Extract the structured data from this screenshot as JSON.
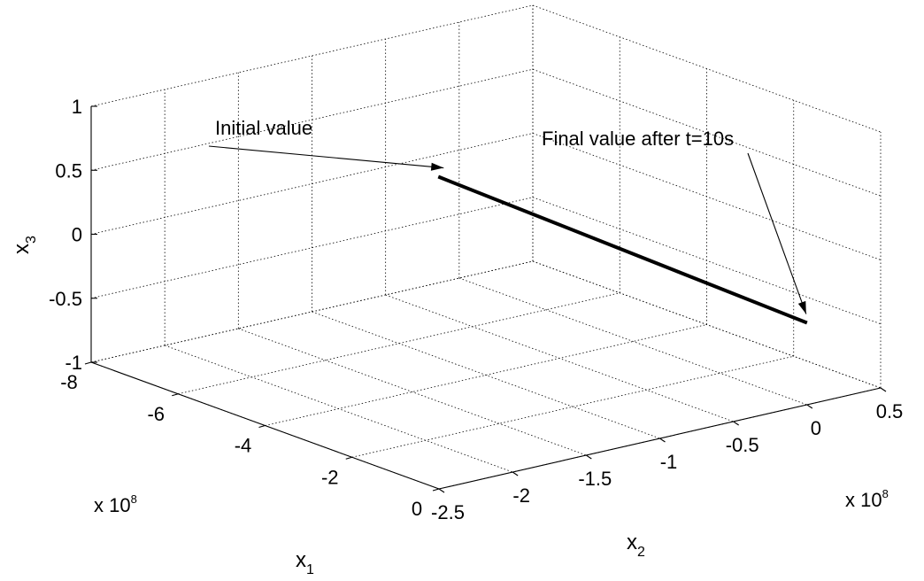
{
  "chart_data": {
    "type": "line",
    "projection": "3d",
    "title": "",
    "xlabel": "x",
    "xlabel_sub": "1",
    "ylabel": "x",
    "ylabel_sub": "2",
    "zlabel": "x",
    "zlabel_sub": "3",
    "x_multiplier_base": "x 10",
    "x_multiplier_exp": "8",
    "y_multiplier_base": "x 10",
    "y_multiplier_exp": "8",
    "xlim": [
      -8,
      0
    ],
    "ylim": [
      -2.5,
      0.5
    ],
    "zlim": [
      -1,
      1
    ],
    "x_ticks": [
      -8,
      -6,
      -4,
      -2,
      0
    ],
    "x_tick_labels": [
      "-8",
      "-6",
      "-4",
      "-2",
      "0"
    ],
    "y_ticks": [
      -2.5,
      -2,
      -1.5,
      -1,
      -0.5,
      0,
      0.5
    ],
    "y_tick_labels": [
      "-2.5",
      "-2",
      "-1.5",
      "-1",
      "-0.5",
      "0",
      "0.5"
    ],
    "z_ticks": [
      -1,
      -0.5,
      0,
      0.5,
      1
    ],
    "z_tick_labels": [
      "-1",
      "-0.5",
      "0",
      "0.5",
      "1"
    ],
    "grid": true,
    "series": [
      {
        "points": [
          {
            "x": -7.6,
            "y": -0.26,
            "z": -0.09
          },
          {
            "x": 0.0,
            "y": 0.0,
            "z": -0.36
          }
        ]
      }
    ],
    "annotations": [
      {
        "text": "Initial value",
        "points_to": "start"
      },
      {
        "text": "Final value after t=10s",
        "points_to": "end"
      }
    ]
  }
}
